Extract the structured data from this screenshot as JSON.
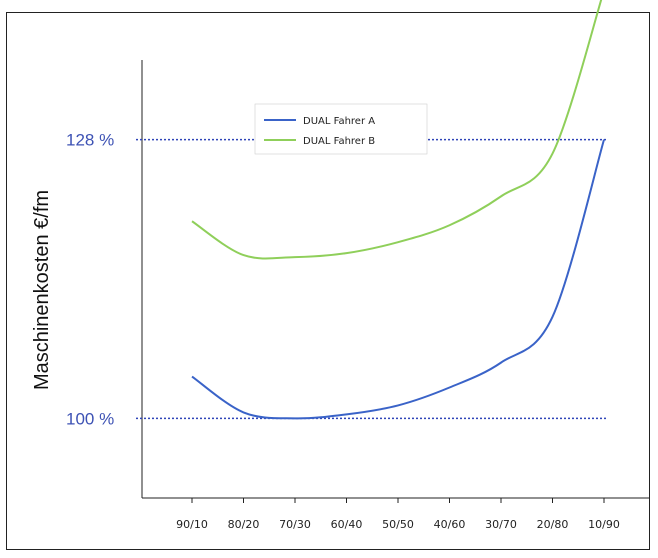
{
  "chart_data": {
    "type": "line",
    "title": "",
    "xlabel": "",
    "ylabel": "Maschinenkosten  €/fm",
    "categories": [
      "90/10",
      "80/20",
      "70/30",
      "60/40",
      "50/50",
      "40/60",
      "30/70",
      "20/80",
      "10/90"
    ],
    "ylim": [
      92,
      136
    ],
    "reference_lines": [
      {
        "value": 128,
        "label": "128 %"
      },
      {
        "value": 100,
        "label": "100 %"
      }
    ],
    "series": [
      {
        "name": "DUAL Fahrer A",
        "color": "#3a63c8",
        "values": [
          104.2,
          100.6,
          100.0,
          100.4,
          101.3,
          103.1,
          105.6,
          110.2,
          128.0
        ]
      },
      {
        "name": "DUAL Fahrer B",
        "color": "#8fcf5a",
        "values": [
          119.8,
          116.4,
          116.2,
          116.6,
          117.7,
          119.4,
          122.3,
          126.6,
          143.0
        ]
      }
    ],
    "legend": "top-center",
    "grid": false
  },
  "colors": {
    "ref_line": "#2f44b8",
    "ref_label": "#3d52b4",
    "axis": "#222222"
  }
}
